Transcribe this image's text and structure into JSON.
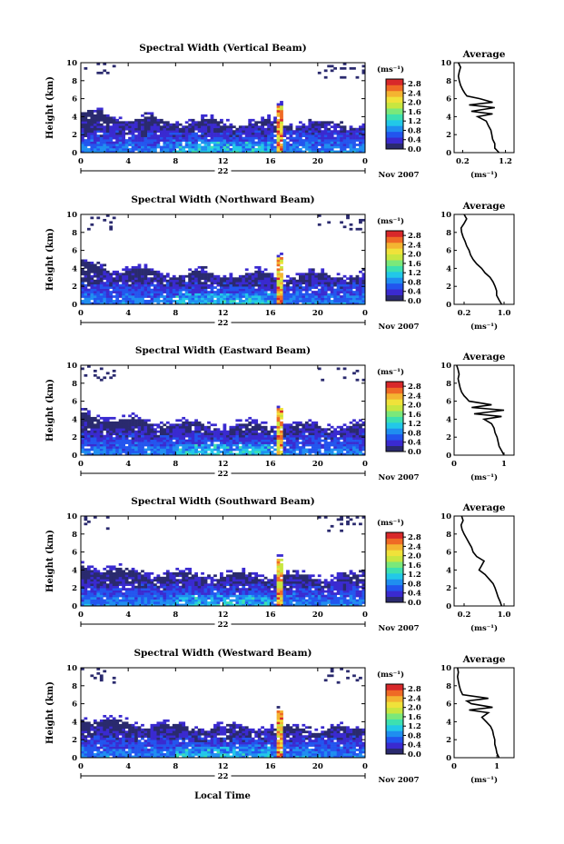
{
  "figure": {
    "xlabel": "Local Time",
    "date_label": "Nov 2007",
    "day_label": "22",
    "ylabel": "Height (km)",
    "colorbar_unit": "(ms⁻¹)",
    "average_title": "Average",
    "average_unit": "(ms⁻¹)",
    "colorscale": [
      "#2a2a6e",
      "#3a2ad0",
      "#2255ee",
      "#1f8ef0",
      "#22c8e8",
      "#3de0b0",
      "#7be87a",
      "#c8e640",
      "#f0e23a",
      "#f4b431",
      "#ef6a25",
      "#d8282a"
    ]
  },
  "chart_data": [
    {
      "type": "heatmap",
      "title": "Spectral Width (Vertical Beam)",
      "x_ticks": [
        "0",
        "4",
        "8",
        "12",
        "16",
        "20",
        "0"
      ],
      "xlim": [
        0,
        24
      ],
      "y_ticks": [
        "0",
        "2",
        "4",
        "6",
        "8",
        "10"
      ],
      "ylim": [
        0,
        10
      ],
      "colorbar_ticks": [
        "0.0",
        "0.4",
        "0.8",
        "1.2",
        "1.6",
        "2.0",
        "2.4",
        "2.8"
      ],
      "colorbar_range": [
        0,
        3.0
      ],
      "average": {
        "x_ticks": [
          "0.2",
          "1.2"
        ],
        "xlim": [
          0.0,
          1.4
        ],
        "height": [
          0,
          0.5,
          1,
          1.5,
          2,
          2.5,
          3,
          3.5,
          4,
          4.3,
          4.6,
          5,
          5.3,
          5.6,
          6,
          6.3,
          6.6,
          7,
          7.5,
          8,
          8.5,
          9,
          9.5,
          10
        ],
        "width": [
          1.05,
          0.95,
          0.95,
          0.9,
          0.88,
          0.86,
          0.8,
          0.75,
          0.55,
          0.9,
          0.4,
          0.95,
          0.35,
          0.9,
          0.6,
          0.3,
          0.25,
          0.2,
          0.15,
          0.12,
          0.1,
          0.12,
          0.15,
          0.1
        ]
      }
    },
    {
      "type": "heatmap",
      "title": "Spectral Width (Northward Beam)",
      "x_ticks": [
        "0",
        "4",
        "8",
        "12",
        "16",
        "20",
        "0"
      ],
      "xlim": [
        0,
        24
      ],
      "y_ticks": [
        "0",
        "2",
        "4",
        "6",
        "8",
        "10"
      ],
      "ylim": [
        0,
        10
      ],
      "colorbar_ticks": [
        "0.0",
        "0.4",
        "0.8",
        "1.2",
        "1.6",
        "2.0",
        "2.4",
        "2.8"
      ],
      "colorbar_range": [
        0,
        3.0
      ],
      "average": {
        "x_ticks": [
          "0.2",
          "1.0"
        ],
        "xlim": [
          0.0,
          1.2
        ],
        "height": [
          0,
          0.5,
          1,
          1.5,
          2,
          2.5,
          3,
          3.5,
          4,
          4.5,
          5,
          5.5,
          6,
          6.5,
          7,
          7.5,
          8,
          8.5,
          9,
          9.5,
          10
        ],
        "width": [
          0.95,
          0.9,
          0.85,
          0.85,
          0.82,
          0.78,
          0.72,
          0.62,
          0.55,
          0.45,
          0.38,
          0.33,
          0.3,
          0.25,
          0.22,
          0.18,
          0.15,
          0.14,
          0.2,
          0.25,
          0.2
        ]
      }
    },
    {
      "type": "heatmap",
      "title": "Spectral Width (Eastward Beam)",
      "x_ticks": [
        "0",
        "4",
        "8",
        "12",
        "16",
        "20",
        "0"
      ],
      "xlim": [
        0,
        24
      ],
      "y_ticks": [
        "0",
        "2",
        "4",
        "6",
        "8",
        "10"
      ],
      "ylim": [
        0,
        10
      ],
      "colorbar_ticks": [
        "0.0",
        "0.4",
        "0.8",
        "1.2",
        "1.6",
        "2.0",
        "2.4",
        "2.8"
      ],
      "colorbar_range": [
        0,
        3.0
      ],
      "average": {
        "x_ticks": [
          "0",
          "1"
        ],
        "xlim": [
          0.0,
          1.2
        ],
        "height": [
          0,
          0.5,
          1,
          1.5,
          2,
          2.5,
          3,
          3.5,
          4,
          4.3,
          4.6,
          5,
          5.3,
          5.6,
          6,
          6.3,
          6.6,
          7,
          7.5,
          8,
          8.5,
          9,
          9.5,
          10
        ],
        "width": [
          1.0,
          0.95,
          0.9,
          0.88,
          0.86,
          0.82,
          0.8,
          0.75,
          0.6,
          0.95,
          0.4,
          1.0,
          0.35,
          0.75,
          0.3,
          0.25,
          0.2,
          0.15,
          0.12,
          0.1,
          0.08,
          0.1,
          0.08,
          0.05
        ]
      }
    },
    {
      "type": "heatmap",
      "title": "Spectral Width (Southward Beam)",
      "x_ticks": [
        "0",
        "4",
        "8",
        "12",
        "16",
        "20",
        "0"
      ],
      "xlim": [
        0,
        24
      ],
      "y_ticks": [
        "0",
        "2",
        "4",
        "6",
        "8",
        "10"
      ],
      "ylim": [
        0,
        10
      ],
      "colorbar_ticks": [
        "0.0",
        "0.4",
        "0.8",
        "1.2",
        "1.6",
        "2.0",
        "2.4",
        "2.8"
      ],
      "colorbar_range": [
        0,
        3.0
      ],
      "average": {
        "x_ticks": [
          "0.2",
          "1.0"
        ],
        "xlim": [
          0.0,
          1.2
        ],
        "height": [
          0,
          0.5,
          1,
          1.5,
          2,
          2.5,
          3,
          3.5,
          4,
          4.5,
          5,
          5.5,
          6,
          6.5,
          7,
          7.5,
          8,
          8.5,
          9,
          9.5,
          10
        ],
        "width": [
          0.95,
          0.92,
          0.88,
          0.85,
          0.82,
          0.78,
          0.7,
          0.62,
          0.5,
          0.55,
          0.6,
          0.45,
          0.38,
          0.35,
          0.3,
          0.25,
          0.2,
          0.16,
          0.14,
          0.18,
          0.15
        ]
      }
    },
    {
      "type": "heatmap",
      "title": "Spectral Width (Westward Beam)",
      "x_ticks": [
        "0",
        "4",
        "8",
        "12",
        "16",
        "20",
        "0"
      ],
      "xlim": [
        0,
        24
      ],
      "y_ticks": [
        "0",
        "2",
        "4",
        "6",
        "8",
        "10"
      ],
      "ylim": [
        0,
        10
      ],
      "colorbar_ticks": [
        "0.0",
        "0.4",
        "0.8",
        "1.2",
        "1.6",
        "2.0",
        "2.4",
        "2.8"
      ],
      "colorbar_range": [
        0,
        3.0
      ],
      "average": {
        "x_ticks": [
          "0",
          "1"
        ],
        "xlim": [
          0.0,
          1.4
        ],
        "height": [
          0,
          0.5,
          1,
          1.5,
          2,
          2.5,
          3,
          3.5,
          4,
          4.5,
          5,
          5.3,
          5.6,
          6,
          6.3,
          6.6,
          7,
          7.5,
          8,
          8.5,
          9,
          9.5,
          10
        ],
        "width": [
          1.05,
          1.0,
          0.98,
          0.95,
          0.95,
          0.92,
          0.9,
          0.85,
          0.75,
          0.65,
          0.8,
          0.35,
          0.9,
          0.4,
          0.3,
          0.8,
          0.2,
          0.15,
          0.12,
          0.1,
          0.08,
          0.1,
          0.08
        ]
      }
    }
  ]
}
